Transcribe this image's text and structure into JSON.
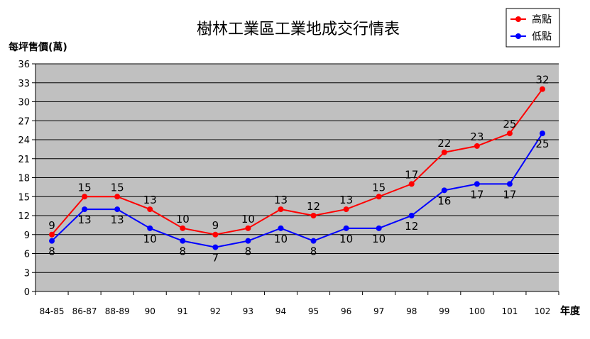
{
  "chart_data": {
    "type": "line",
    "title": "樹林工業區工業地成交行情表",
    "ylabel": "每坪售價(萬)",
    "xlabel": "年度",
    "categories": [
      "84-85",
      "86-87",
      "88-89",
      "90",
      "91",
      "92",
      "93",
      "94",
      "95",
      "96",
      "97",
      "98",
      "99",
      "100",
      "101",
      "102"
    ],
    "ylim": [
      0,
      36
    ],
    "yticks": [
      0,
      3,
      6,
      9,
      12,
      15,
      18,
      21,
      24,
      27,
      30,
      33,
      36
    ],
    "grid": true,
    "legend_position": "top-right",
    "series": [
      {
        "name": "高點",
        "color": "#ff0000",
        "values": [
          9,
          15,
          15,
          13,
          10,
          9,
          10,
          13,
          12,
          13,
          15,
          17,
          22,
          23,
          25,
          32
        ],
        "label_position": "above"
      },
      {
        "name": "低點",
        "color": "#0000ff",
        "values": [
          8,
          13,
          13,
          10,
          8,
          7,
          8,
          10,
          8,
          10,
          10,
          12,
          16,
          17,
          17,
          25
        ],
        "label_position": "below"
      }
    ]
  },
  "colors": {
    "plot_background": "#c0c0c0",
    "gridline": "#000000"
  }
}
